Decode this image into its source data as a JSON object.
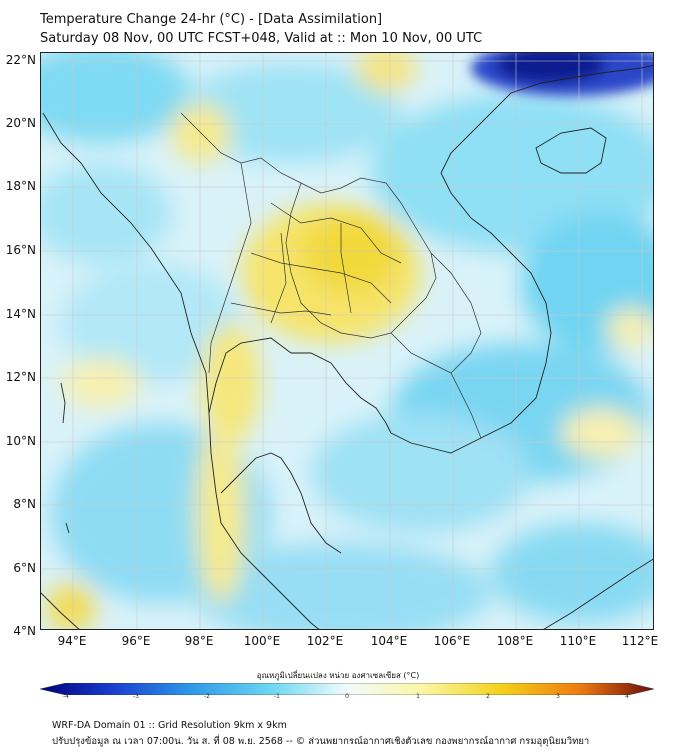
{
  "title": {
    "line1": "Temperature Change 24-hr (°C) - [Data Assimilation]",
    "line2": "Saturday 08 Nov, 00 UTC FCST+048, Valid at :: Mon 10 Nov, 00 UTC"
  },
  "axes": {
    "lat_labels": [
      "22°N",
      "20°N",
      "18°N",
      "16°N",
      "14°N",
      "12°N",
      "10°N",
      "8°N",
      "6°N",
      "4°N"
    ],
    "lon_labels": [
      "94°E",
      "96°E",
      "98°E",
      "100°E",
      "102°E",
      "104°E",
      "106°E",
      "108°E",
      "110°E",
      "112°E"
    ],
    "lat_range": [
      4,
      22.2
    ],
    "lon_range": [
      93,
      112.4
    ]
  },
  "colorbar": {
    "title": "อุณหภูมิเปลี่ยนแปลง หน่วย องศาเซลเซียส (°C)",
    "ticks": [
      "-4",
      "-3",
      "-2",
      "-1",
      "0",
      "1",
      "2",
      "3",
      "4"
    ],
    "min": -4,
    "max": 4,
    "colors": [
      "#00007a",
      "#1a3fd1",
      "#2f9be8",
      "#6fd8f2",
      "#dff7fb",
      "#fbf6a8",
      "#f4d21b",
      "#ef7a10",
      "#b7150f",
      "#6b0a0a"
    ]
  },
  "footer": {
    "line1": "WRF-DA Domain 01 :: Grid Resolution 9km x 9km",
    "line2": "ปรับปรุงข้อมูล ณ เวลา 07:00น. วัน ส. ที่ 08 พ.ย. 2568 -- © ส่วนพยากรณ์อากาศเชิงตัวเลข กองพยากรณ์อากาศ กรมอุตุนิยมวิทยา"
  }
}
